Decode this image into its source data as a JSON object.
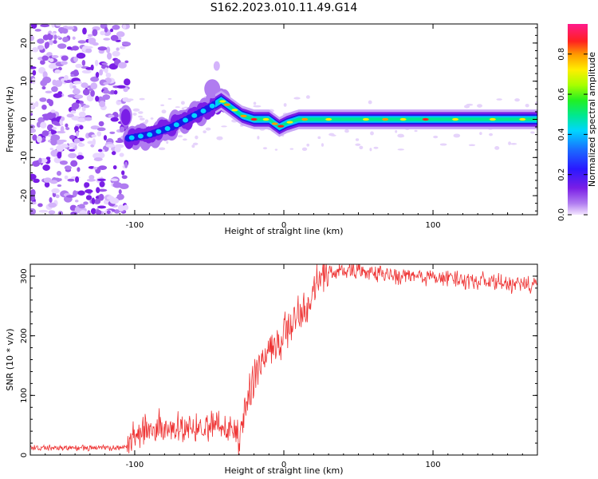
{
  "title": "S162.2023.010.11.49.G14",
  "chart_data": [
    {
      "type": "heatmap",
      "xlabel": "Height of straight line (km)",
      "ylabel": "Frequency (Hz)",
      "xlim": [
        -170,
        170
      ],
      "ylim": [
        -25,
        25
      ],
      "x_ticks": [
        -100,
        0,
        100
      ],
      "y_ticks": [
        -20,
        -10,
        0,
        10,
        20
      ],
      "colorbar": {
        "label": "Normalized spectral amplitude",
        "range": [
          0,
          0.95
        ],
        "ticks": [
          "0.0",
          "0.2",
          "0.4",
          "0.6",
          "0.8"
        ],
        "colormap": "rainbow (violet-blue-cyan-green-yellow-red-magenta)"
      },
      "features": {
        "noise_region_x": [
          -170,
          -105
        ],
        "ridge": [
          {
            "x": -105,
            "y": -5
          },
          {
            "x": -90,
            "y": -4
          },
          {
            "x": -75,
            "y": -2
          },
          {
            "x": -60,
            "y": 1
          },
          {
            "x": -50,
            "y": 3
          },
          {
            "x": -42,
            "y": 5
          },
          {
            "x": -35,
            "y": 3
          },
          {
            "x": -28,
            "y": 1
          },
          {
            "x": -20,
            "y": 0
          },
          {
            "x": -10,
            "y": 0
          },
          {
            "x": -3,
            "y": -2
          },
          {
            "x": 2,
            "y": -1
          },
          {
            "x": 10,
            "y": 0
          },
          {
            "x": 170,
            "y": 0
          }
        ]
      }
    },
    {
      "type": "line",
      "xlabel": "Height of straight line (km)",
      "ylabel": "SNR (10 * v/v)",
      "xlim": [
        -170,
        170
      ],
      "ylim": [
        0,
        320
      ],
      "x_ticks": [
        -100,
        0,
        100
      ],
      "y_ticks": [
        0,
        100,
        200,
        300
      ],
      "series": [
        {
          "color": "#ee3333",
          "x": [
            -170,
            -150,
            -130,
            -110,
            -105,
            -100,
            -90,
            -80,
            -70,
            -60,
            -50,
            -42,
            -38,
            -33,
            -30,
            -25,
            -20,
            -15,
            -10,
            -5,
            0,
            5,
            10,
            15,
            20,
            25,
            30,
            40,
            60,
            80,
            100,
            120,
            140,
            160,
            170
          ],
          "y": [
            12,
            12,
            12,
            12,
            15,
            30,
            45,
            40,
            42,
            45,
            48,
            55,
            48,
            40,
            20,
            90,
            130,
            150,
            175,
            180,
            200,
            215,
            235,
            245,
            280,
            295,
            305,
            310,
            305,
            300,
            298,
            295,
            290,
            285,
            285
          ]
        }
      ]
    }
  ]
}
